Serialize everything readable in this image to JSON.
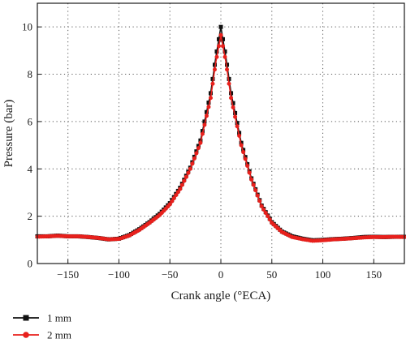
{
  "chart_data": {
    "type": "line",
    "xlabel": "Crank angle (°ECA)",
    "ylabel": "Pressure (bar)",
    "xlim": [
      -180,
      180
    ],
    "ylim": [
      0,
      11
    ],
    "xticks": [
      -150,
      -100,
      -50,
      0,
      50,
      100,
      150
    ],
    "yticks": [
      0,
      2,
      4,
      6,
      8,
      10
    ],
    "xtick_labels": [
      "−150",
      "−100",
      "−50",
      "0",
      "50",
      "100",
      "150"
    ],
    "ytick_labels": [
      "0",
      "2",
      "4",
      "6",
      "8",
      "10"
    ],
    "grid": "dotted",
    "legend_position": "bottom-left",
    "series": [
      {
        "name": "1 mm",
        "color": "#111111",
        "marker": "square",
        "x": [
          -180,
          -170,
          -160,
          -150,
          -140,
          -130,
          -120,
          -110,
          -100,
          -90,
          -80,
          -70,
          -60,
          -50,
          -40,
          -30,
          -20,
          -10,
          -5,
          0,
          5,
          10,
          20,
          30,
          40,
          50,
          60,
          70,
          80,
          90,
          100,
          110,
          120,
          130,
          140,
          150,
          160,
          170,
          180
        ],
        "y": [
          1.15,
          1.15,
          1.18,
          1.15,
          1.15,
          1.12,
          1.08,
          1.02,
          1.05,
          1.2,
          1.45,
          1.75,
          2.1,
          2.55,
          3.2,
          4.05,
          5.2,
          7.2,
          8.7,
          10.0,
          8.7,
          7.2,
          5.1,
          3.6,
          2.45,
          1.75,
          1.35,
          1.15,
          1.05,
          0.98,
          1.0,
          1.03,
          1.05,
          1.08,
          1.12,
          1.13,
          1.12,
          1.13,
          1.13
        ]
      },
      {
        "name": "2 mm",
        "color": "#e8201c",
        "marker": "circle",
        "x": [
          -180,
          -170,
          -160,
          -150,
          -140,
          -130,
          -120,
          -110,
          -100,
          -90,
          -80,
          -70,
          -60,
          -50,
          -40,
          -30,
          -20,
          -10,
          -5,
          0,
          5,
          10,
          20,
          30,
          40,
          50,
          60,
          70,
          80,
          90,
          100,
          110,
          120,
          130,
          140,
          150,
          160,
          170,
          180
        ],
        "y": [
          1.13,
          1.15,
          1.17,
          1.15,
          1.15,
          1.12,
          1.08,
          1.02,
          1.04,
          1.18,
          1.42,
          1.72,
          2.05,
          2.5,
          3.15,
          4.0,
          5.1,
          7.0,
          8.5,
          9.65,
          8.5,
          7.0,
          5.0,
          3.55,
          2.42,
          1.72,
          1.33,
          1.12,
          1.03,
          0.96,
          0.98,
          1.02,
          1.04,
          1.07,
          1.1,
          1.12,
          1.12,
          1.13,
          1.12
        ]
      }
    ]
  }
}
